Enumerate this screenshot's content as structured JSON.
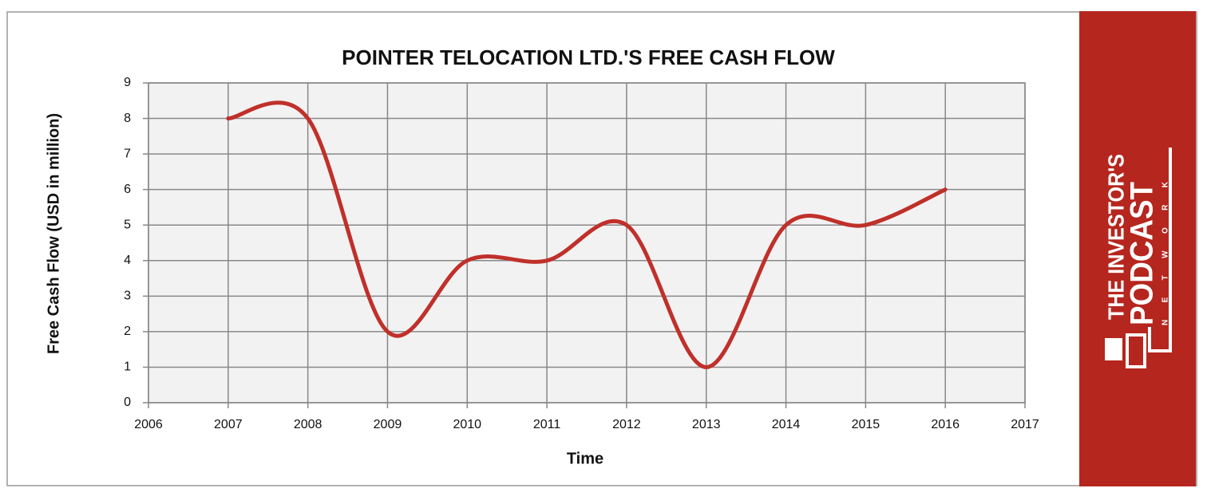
{
  "chart_data": {
    "type": "line",
    "smooth": true,
    "title": "POINTER TELOCATION LTD.'S FREE CASH FLOW",
    "x_label": "Time",
    "y_label": "Free Cash Flow (USD in million)",
    "x": [
      2007,
      2008,
      2009,
      2010,
      2011,
      2012,
      2013,
      2014,
      2015,
      2016
    ],
    "values": [
      8,
      8,
      2,
      4,
      4,
      5,
      1,
      5,
      5,
      6
    ],
    "color": "#c0302a",
    "xlim": [
      2006,
      2017
    ],
    "xticks": [
      2006,
      2007,
      2008,
      2009,
      2010,
      2011,
      2012,
      2013,
      2014,
      2015,
      2016,
      2017
    ],
    "ylim": [
      0,
      9
    ],
    "yticks": [
      0,
      1,
      2,
      3,
      4,
      5,
      6,
      7,
      8,
      9
    ],
    "grid": true
  },
  "logo": {
    "line1": "THE INVESTOR'S",
    "line2": "PODCAST",
    "line3": "NETWORK"
  }
}
